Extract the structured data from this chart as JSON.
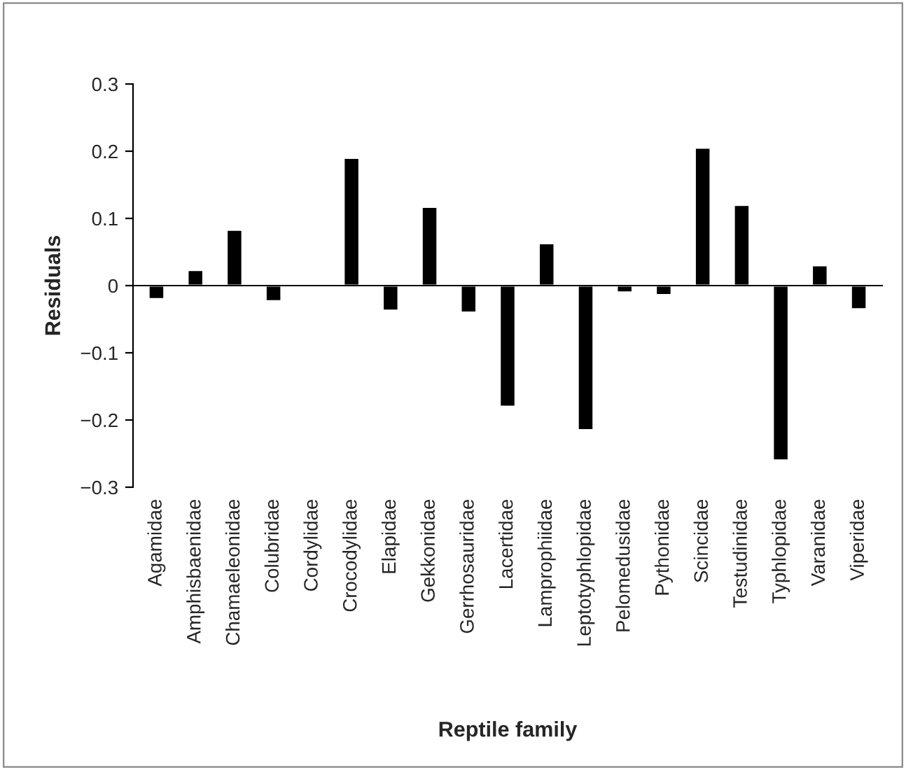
{
  "chart_data": {
    "type": "bar",
    "xlabel": "Reptile family",
    "ylabel": "Residuals",
    "categories": [
      "Agamidae",
      "Amphisbaenidae",
      "Chamaeleonidae",
      "Colubridae",
      "Cordylidae",
      "Crocodylidae",
      "Elapidae",
      "Gekkonidae",
      "Gerrhosauridae",
      "Lacertidae",
      "Lamprophiidae",
      "Leptotyphlopidae",
      "Pelomedusidae",
      "Pythonidae",
      "Scincidae",
      "Testudinidae",
      "Typhlopidae",
      "Varanidae",
      "Viperidae"
    ],
    "values": [
      -0.02,
      0.023,
      0.083,
      -0.023,
      null,
      0.19,
      -0.037,
      0.117,
      -0.04,
      -0.18,
      0.063,
      -0.215,
      -0.01,
      -0.014,
      0.205,
      0.12,
      -0.26,
      0.03,
      -0.035
    ],
    "color": "#000000",
    "ylim": [
      -0.3,
      0.3
    ],
    "yticks": [
      {
        "value": -0.3,
        "label": "−0.3"
      },
      {
        "value": -0.2,
        "label": "−0.2"
      },
      {
        "value": -0.1,
        "label": "−0.1"
      },
      0,
      0.1,
      0.2,
      0.3
    ],
    "orientation": "vertical"
  }
}
